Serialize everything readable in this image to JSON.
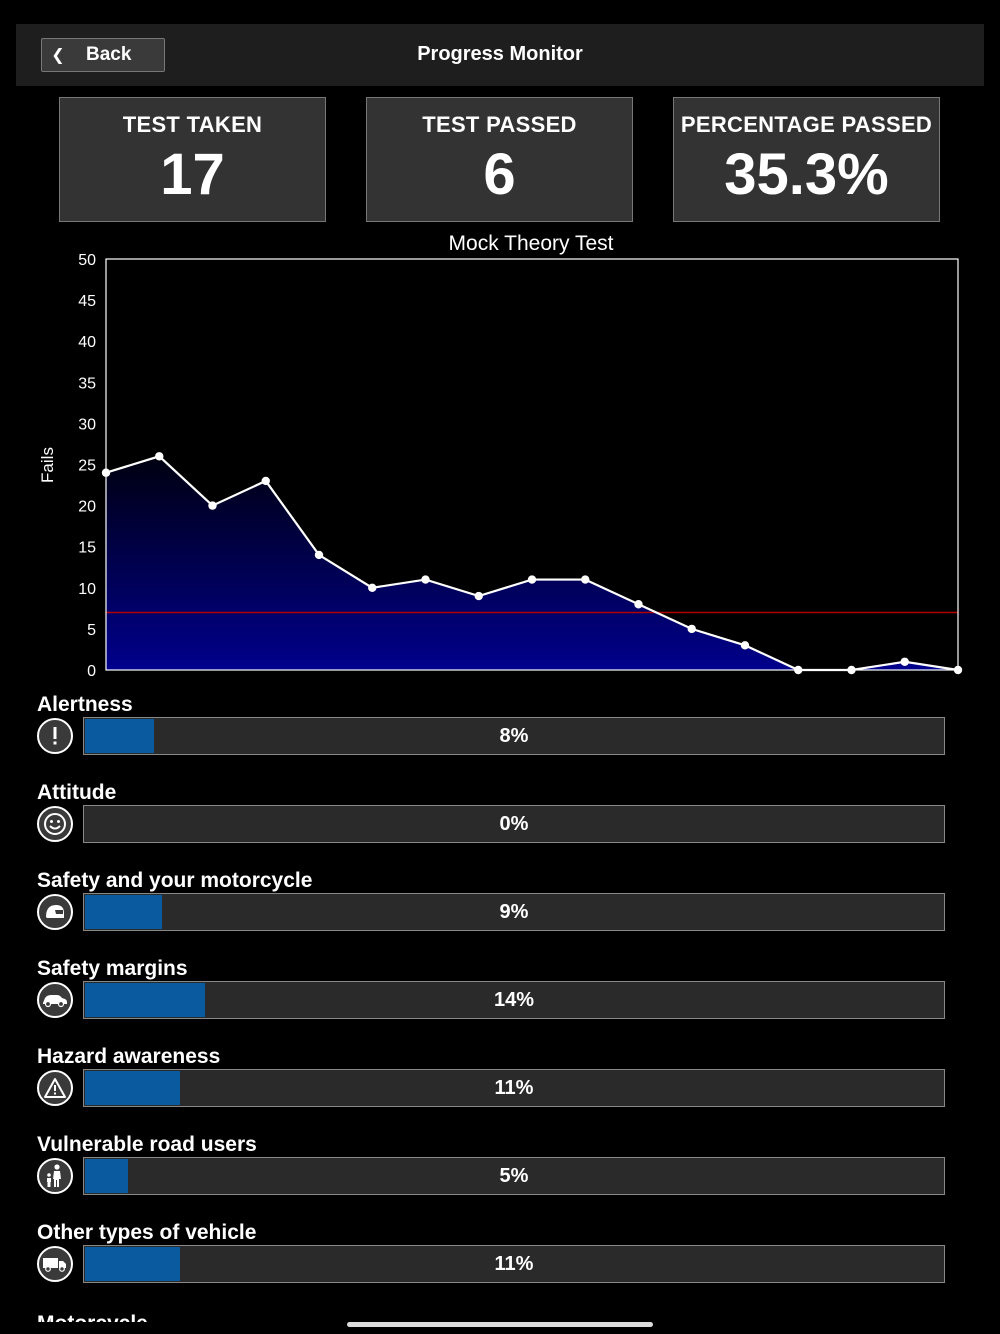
{
  "nav": {
    "back_label": "Back",
    "title": "Progress Monitor"
  },
  "stats": [
    {
      "label": "TEST TAKEN",
      "value": "17"
    },
    {
      "label": "TEST PASSED",
      "value": "6"
    },
    {
      "label": "PERCENTAGE PASSED",
      "value": "35.3%"
    }
  ],
  "chart_data": {
    "type": "area",
    "title": "Mock Theory Test",
    "xlabel": "",
    "ylabel": "Fails",
    "ylim": [
      0,
      50
    ],
    "yticks": [
      0,
      5,
      10,
      15,
      20,
      25,
      30,
      35,
      40,
      45,
      50
    ],
    "x": [
      1,
      2,
      3,
      4,
      5,
      6,
      7,
      8,
      9,
      10,
      11,
      12,
      13,
      14,
      15,
      16,
      17
    ],
    "values": [
      24,
      26,
      20,
      23,
      14,
      10,
      11,
      9,
      11,
      11,
      8,
      5,
      3,
      0,
      0,
      1,
      0
    ],
    "threshold": 7,
    "colors": {
      "line": "#ffffff",
      "fill": "#00008c",
      "threshold": "#b00000"
    },
    "grid": false,
    "legend": "none"
  },
  "categories": [
    {
      "title": "Alertness",
      "percent": 0.08,
      "percent_label": "8%",
      "icon": "exclamation-icon"
    },
    {
      "title": "Attitude",
      "percent": 0.0,
      "percent_label": "0%",
      "icon": "smiley-icon"
    },
    {
      "title": "Safety and your motorcycle",
      "percent": 0.09,
      "percent_label": "9%",
      "icon": "helmet-icon"
    },
    {
      "title": "Safety margins",
      "percent": 0.14,
      "percent_label": "14%",
      "icon": "car-icon"
    },
    {
      "title": "Hazard awareness",
      "percent": 0.11,
      "percent_label": "11%",
      "icon": "warning-triangle-icon"
    },
    {
      "title": "Vulnerable road users",
      "percent": 0.05,
      "percent_label": "5%",
      "icon": "pedestrian-icon"
    },
    {
      "title": "Other types of vehicle",
      "percent": 0.11,
      "percent_label": "11%",
      "icon": "truck-icon"
    }
  ],
  "partial_next_title": "Motorcycle handling",
  "colors": {
    "accent": "#0a5aa0",
    "card_bg": "#333333",
    "navbar_bg": "#1e1e1e"
  }
}
